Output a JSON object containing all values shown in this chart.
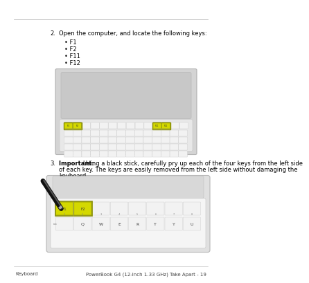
{
  "page_bg": "#ffffff",
  "footer_left": "Keyboard",
  "footer_right": "PowerBook G4 (12-inch 1.33 GHz) Take Apart - 19",
  "footer_fontsize": 5.0,
  "step2_number": "2.",
  "step2_text": "Open the computer, and locate the following keys:",
  "step2_fontsize": 6.0,
  "bullets": [
    "F1",
    "F2",
    "F11",
    "F12"
  ],
  "bullet_fontsize": 6.0,
  "step3_number": "3.",
  "step3_important": "Important: ",
  "step3_line1": "Using a black stick, carefully pry up each of the four keys from the left side",
  "step3_line2": "of each key. The keys are easily removed from the left side without damaging the",
  "step3_line3": "keyboard.",
  "step3_fontsize": 6.0,
  "highlight_color": "#d4d800",
  "highlight_edge": "#8a9000",
  "key_color": "#f2f2f2",
  "key_edge": "#cccccc",
  "laptop_body": "#d4d4d4",
  "laptop_edge": "#b0b0b0",
  "screen_color": "#c8c8c8",
  "kbd_surface": "#e8e8e8",
  "kbd2_body": "#e0e0e0",
  "kbd2_surface": "#f5f5f5"
}
